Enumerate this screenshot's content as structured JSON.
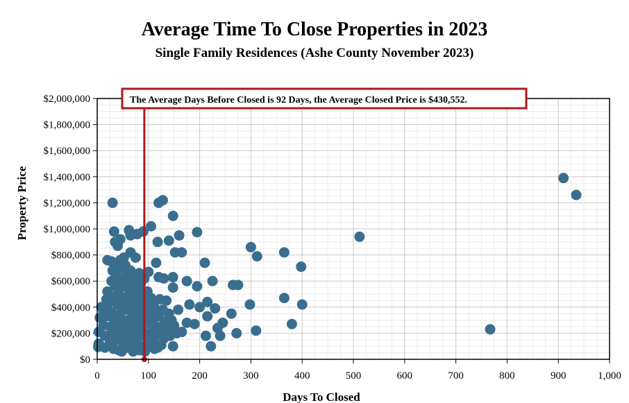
{
  "chart_data": {
    "type": "scatter",
    "title": "Average Time To Close Properties in 2023",
    "subtitle": "Single Family Residences (Ashe County November 2023)",
    "xlabel": "Days To Closed",
    "ylabel": "Property Price",
    "xlim": [
      0,
      1000
    ],
    "ylim": [
      0,
      2000000
    ],
    "x_ticks": [
      "0",
      "100",
      "200",
      "300",
      "400",
      "500",
      "600",
      "700",
      "800",
      "900",
      "1,000"
    ],
    "y_ticks": [
      "$0",
      "$200,000",
      "$400,000",
      "$600,000",
      "$800,000",
      "$1,000,000",
      "$1,200,000",
      "$1,400,000",
      "$1,600,000",
      "$1,800,000",
      "$2,000,000"
    ],
    "grid": true,
    "marker_color": "#3a6e8f",
    "reference_line": {
      "x": 92,
      "color": "#b0181c"
    },
    "annotation": "The Average Days Before Closed is 92 Days, the Average Closed Price is $430,552.",
    "series": [
      {
        "points": [
          [
            30,
            1200000
          ],
          [
            33,
            980000
          ],
          [
            35,
            900000
          ],
          [
            40,
            870000
          ],
          [
            45,
            920000
          ],
          [
            62,
            990000
          ],
          [
            65,
            950000
          ],
          [
            78,
            960000
          ],
          [
            90,
            980000
          ],
          [
            105,
            1020000
          ],
          [
            120,
            1200000
          ],
          [
            128,
            1220000
          ],
          [
            148,
            1100000
          ],
          [
            118,
            900000
          ],
          [
            140,
            910000
          ],
          [
            160,
            950000
          ],
          [
            195,
            975000
          ],
          [
            20,
            760000
          ],
          [
            28,
            750000
          ],
          [
            45,
            760000
          ],
          [
            52,
            780000
          ],
          [
            65,
            820000
          ],
          [
            75,
            780000
          ],
          [
            100,
            670000
          ],
          [
            115,
            740000
          ],
          [
            152,
            820000
          ],
          [
            165,
            820000
          ],
          [
            210,
            740000
          ],
          [
            120,
            630000
          ],
          [
            130,
            620000
          ],
          [
            148,
            630000
          ],
          [
            175,
            600000
          ],
          [
            195,
            560000
          ],
          [
            225,
            600000
          ],
          [
            148,
            550000
          ],
          [
            265,
            570000
          ],
          [
            275,
            570000
          ],
          [
            300,
            860000
          ],
          [
            312,
            790000
          ],
          [
            365,
            820000
          ],
          [
            398,
            710000
          ],
          [
            512,
            940000
          ],
          [
            365,
            470000
          ],
          [
            400,
            420000
          ],
          [
            380,
            270000
          ],
          [
            298,
            420000
          ],
          [
            310,
            220000
          ],
          [
            272,
            200000
          ],
          [
            262,
            350000
          ],
          [
            245,
            280000
          ],
          [
            235,
            240000
          ],
          [
            230,
            390000
          ],
          [
            215,
            440000
          ],
          [
            215,
            330000
          ],
          [
            212,
            180000
          ],
          [
            222,
            100000
          ],
          [
            240,
            180000
          ],
          [
            200,
            400000
          ],
          [
            190,
            270000
          ],
          [
            180,
            420000
          ],
          [
            175,
            280000
          ],
          [
            165,
            210000
          ],
          [
            158,
            380000
          ],
          [
            148,
            100000
          ],
          [
            138,
            300000
          ],
          [
            128,
            180000
          ],
          [
            118,
            90000
          ],
          [
            125,
            110000
          ],
          [
            108,
            250000
          ],
          [
            112,
            440000
          ],
          [
            98,
            520000
          ],
          [
            102,
            400000
          ],
          [
            135,
            450000
          ],
          [
            145,
            240000
          ],
          [
            910,
            1390000
          ],
          [
            935,
            1260000
          ],
          [
            767,
            230000
          ],
          [
            5,
            320000
          ],
          [
            3,
            210000
          ],
          [
            3,
            120000
          ],
          [
            2,
            95000
          ],
          [
            8,
            400000
          ],
          [
            12,
            260000
          ],
          [
            15,
            180000
          ],
          [
            15,
            90000
          ],
          [
            18,
            330000
          ],
          [
            20,
            520000
          ],
          [
            22,
            430000
          ],
          [
            25,
            250000
          ],
          [
            25,
            140000
          ],
          [
            28,
            600000
          ],
          [
            28,
            360000
          ],
          [
            30,
            200000
          ],
          [
            32,
            480000
          ],
          [
            32,
            80000
          ],
          [
            35,
            310000
          ],
          [
            35,
            560000
          ],
          [
            38,
            650000
          ],
          [
            38,
            150000
          ],
          [
            40,
            420000
          ],
          [
            40,
            240000
          ],
          [
            42,
            520000
          ],
          [
            42,
            70000
          ],
          [
            45,
            350000
          ],
          [
            45,
            620000
          ],
          [
            48,
            180000
          ],
          [
            48,
            450000
          ],
          [
            50,
            280000
          ],
          [
            50,
            700000
          ],
          [
            52,
            560000
          ],
          [
            52,
            110000
          ],
          [
            55,
            380000
          ],
          [
            55,
            220000
          ],
          [
            58,
            480000
          ],
          [
            58,
            640000
          ],
          [
            60,
            300000
          ],
          [
            60,
            150000
          ],
          [
            62,
            420000
          ],
          [
            62,
            540000
          ],
          [
            65,
            260000
          ],
          [
            65,
            680000
          ],
          [
            68,
            360000
          ],
          [
            68,
            80000
          ],
          [
            70,
            500000
          ],
          [
            70,
            200000
          ],
          [
            72,
            600000
          ],
          [
            72,
            320000
          ],
          [
            75,
            440000
          ],
          [
            75,
            130000
          ],
          [
            78,
            260000
          ],
          [
            78,
            550000
          ],
          [
            80,
            380000
          ],
          [
            80,
            170000
          ],
          [
            82,
            480000
          ],
          [
            82,
            660000
          ],
          [
            85,
            300000
          ],
          [
            85,
            100000
          ],
          [
            88,
            420000
          ],
          [
            88,
            220000
          ],
          [
            90,
            520000
          ],
          [
            90,
            340000
          ],
          [
            93,
            60000
          ],
          [
            95,
            450000
          ],
          [
            95,
            280000
          ],
          [
            98,
            150000
          ],
          [
            100,
            360000
          ],
          [
            102,
            200000
          ],
          [
            105,
            470000
          ],
          [
            108,
            320000
          ],
          [
            110,
            140000
          ],
          [
            112,
            260000
          ],
          [
            115,
            380000
          ],
          [
            118,
            200000
          ],
          [
            120,
            330000
          ],
          [
            122,
            460000
          ],
          [
            125,
            250000
          ],
          [
            128,
            380000
          ],
          [
            130,
            160000
          ],
          [
            132,
            280000
          ],
          [
            135,
            220000
          ],
          [
            140,
            350000
          ],
          [
            142,
            180000
          ],
          [
            145,
            300000
          ],
          [
            150,
            260000
          ],
          [
            155,
            200000
          ],
          [
            30,
            680000
          ],
          [
            35,
            620000
          ],
          [
            42,
            700000
          ],
          [
            55,
            720000
          ],
          [
            60,
            580000
          ],
          [
            68,
            560000
          ],
          [
            75,
            620000
          ],
          [
            85,
            580000
          ],
          [
            92,
            620000
          ],
          [
            48,
            60000
          ],
          [
            58,
            90000
          ],
          [
            70,
            60000
          ],
          [
            82,
            70000
          ],
          [
            100,
            120000
          ],
          [
            112,
            80000
          ],
          [
            25,
            330000
          ],
          [
            18,
            460000
          ],
          [
            12,
            380000
          ]
        ]
      }
    ]
  }
}
